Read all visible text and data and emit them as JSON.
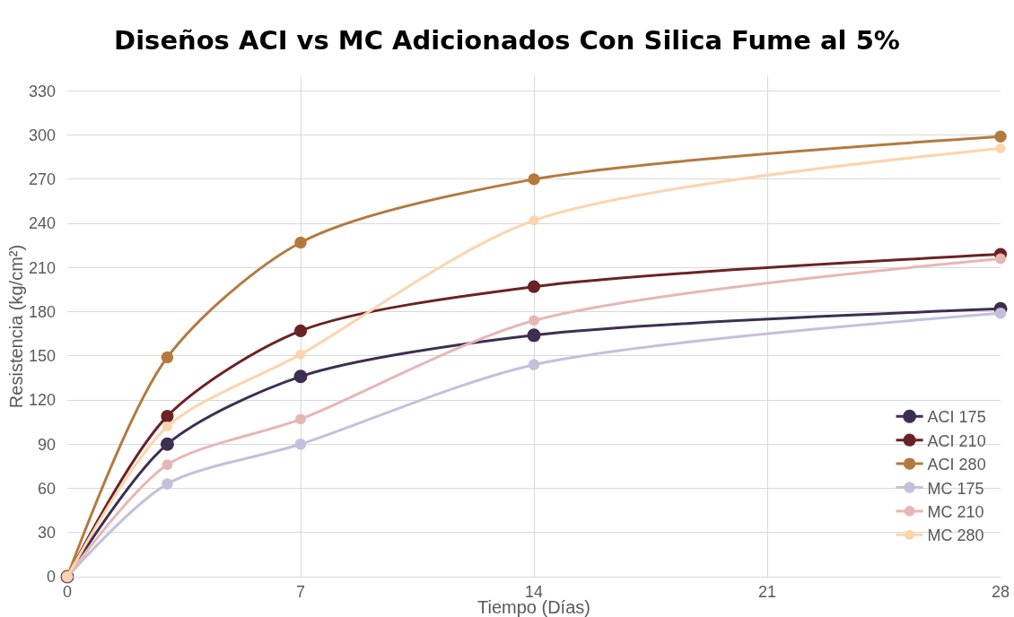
{
  "chart_data": {
    "type": "line",
    "title": "Diseños ACI vs MC Adicionados Con Silica Fume al 5%",
    "xlabel": "Tiempo (Días)",
    "ylabel": "Resistencia (kg/cm²)",
    "x": [
      0,
      3,
      7,
      14,
      28
    ],
    "series": [
      {
        "name": "ACI 175",
        "color": "#3d2f52",
        "values": [
          0,
          90,
          136,
          164,
          182
        ]
      },
      {
        "name": "ACI 210",
        "color": "#6b2226",
        "values": [
          0,
          109,
          167,
          197,
          219
        ]
      },
      {
        "name": "ACI 280",
        "color": "#b5793f",
        "values": [
          0,
          149,
          227,
          270,
          299
        ]
      },
      {
        "name": "MC 175",
        "color": "#c6bfdc",
        "values": [
          0,
          63,
          90,
          144,
          179
        ]
      },
      {
        "name": "MC 210",
        "color": "#e6b7b5",
        "values": [
          0,
          76,
          107,
          174,
          216
        ]
      },
      {
        "name": "MC 280",
        "color": "#fcd5ad",
        "values": [
          0,
          102,
          151,
          242,
          291
        ]
      }
    ],
    "xlim": [
      0,
      28
    ],
    "xticks": [
      0,
      7,
      14,
      21,
      28
    ],
    "ylim": [
      0,
      340
    ],
    "yticks": [
      0,
      30,
      60,
      90,
      120,
      150,
      180,
      210,
      240,
      270,
      300,
      330
    ],
    "grid": true,
    "legend": "right",
    "marker": "circle",
    "line_style": "solid"
  }
}
